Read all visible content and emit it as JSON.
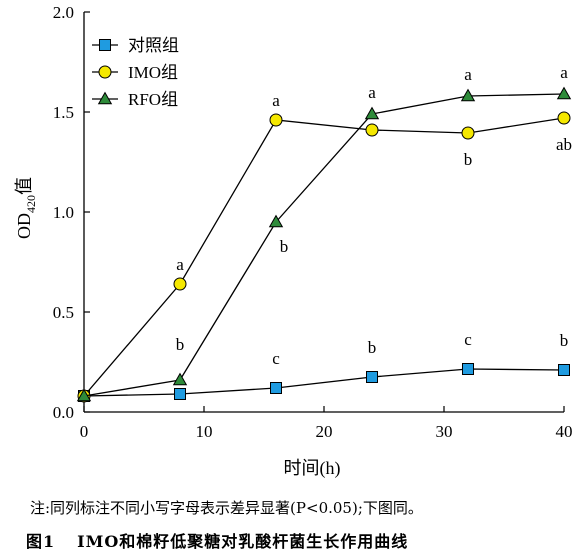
{
  "chart_data": {
    "type": "line",
    "xlabel": "时间(h)",
    "ylabel_main": "OD",
    "ylabel_sub": "420",
    "ylabel_suffix": "值",
    "xlim": [
      0,
      40
    ],
    "ylim": [
      0,
      2.0
    ],
    "x_ticks": [
      0,
      10,
      20,
      30,
      40
    ],
    "y_ticks": [
      "0.0",
      "0.5",
      "1.0",
      "1.5",
      "2.0"
    ],
    "grid": false,
    "legend_position": "top-left",
    "series": [
      {
        "name": "对照组",
        "marker": "square",
        "color": "#1f9be0",
        "x": [
          0,
          8,
          16,
          24,
          32,
          40
        ],
        "y": [
          0.08,
          0.09,
          0.12,
          0.175,
          0.215,
          0.21
        ],
        "labels": [
          "",
          "",
          "c",
          "b",
          "c",
          "b"
        ]
      },
      {
        "name": "IMO组",
        "marker": "circle",
        "color": "#f5e800",
        "x": [
          0,
          8,
          16,
          24,
          32,
          40
        ],
        "y": [
          0.08,
          0.64,
          1.46,
          1.41,
          1.395,
          1.47
        ],
        "labels": [
          "",
          "a",
          "a",
          "",
          "b",
          "ab"
        ]
      },
      {
        "name": "RFO组",
        "marker": "triangle",
        "color": "#2e8b3a",
        "x": [
          0,
          8,
          16,
          24,
          32,
          40
        ],
        "y": [
          0.08,
          0.16,
          0.95,
          1.49,
          1.58,
          1.59
        ],
        "labels": [
          "",
          "b",
          "b",
          "a",
          "a",
          "a"
        ]
      }
    ]
  },
  "note": "注:同列标注不同小写字母表示差异显著(P<0.05);下图同。",
  "caption": {
    "number": "图1",
    "text": "IMO和棉籽低聚糖对乳酸杆菌生长作用曲线"
  }
}
